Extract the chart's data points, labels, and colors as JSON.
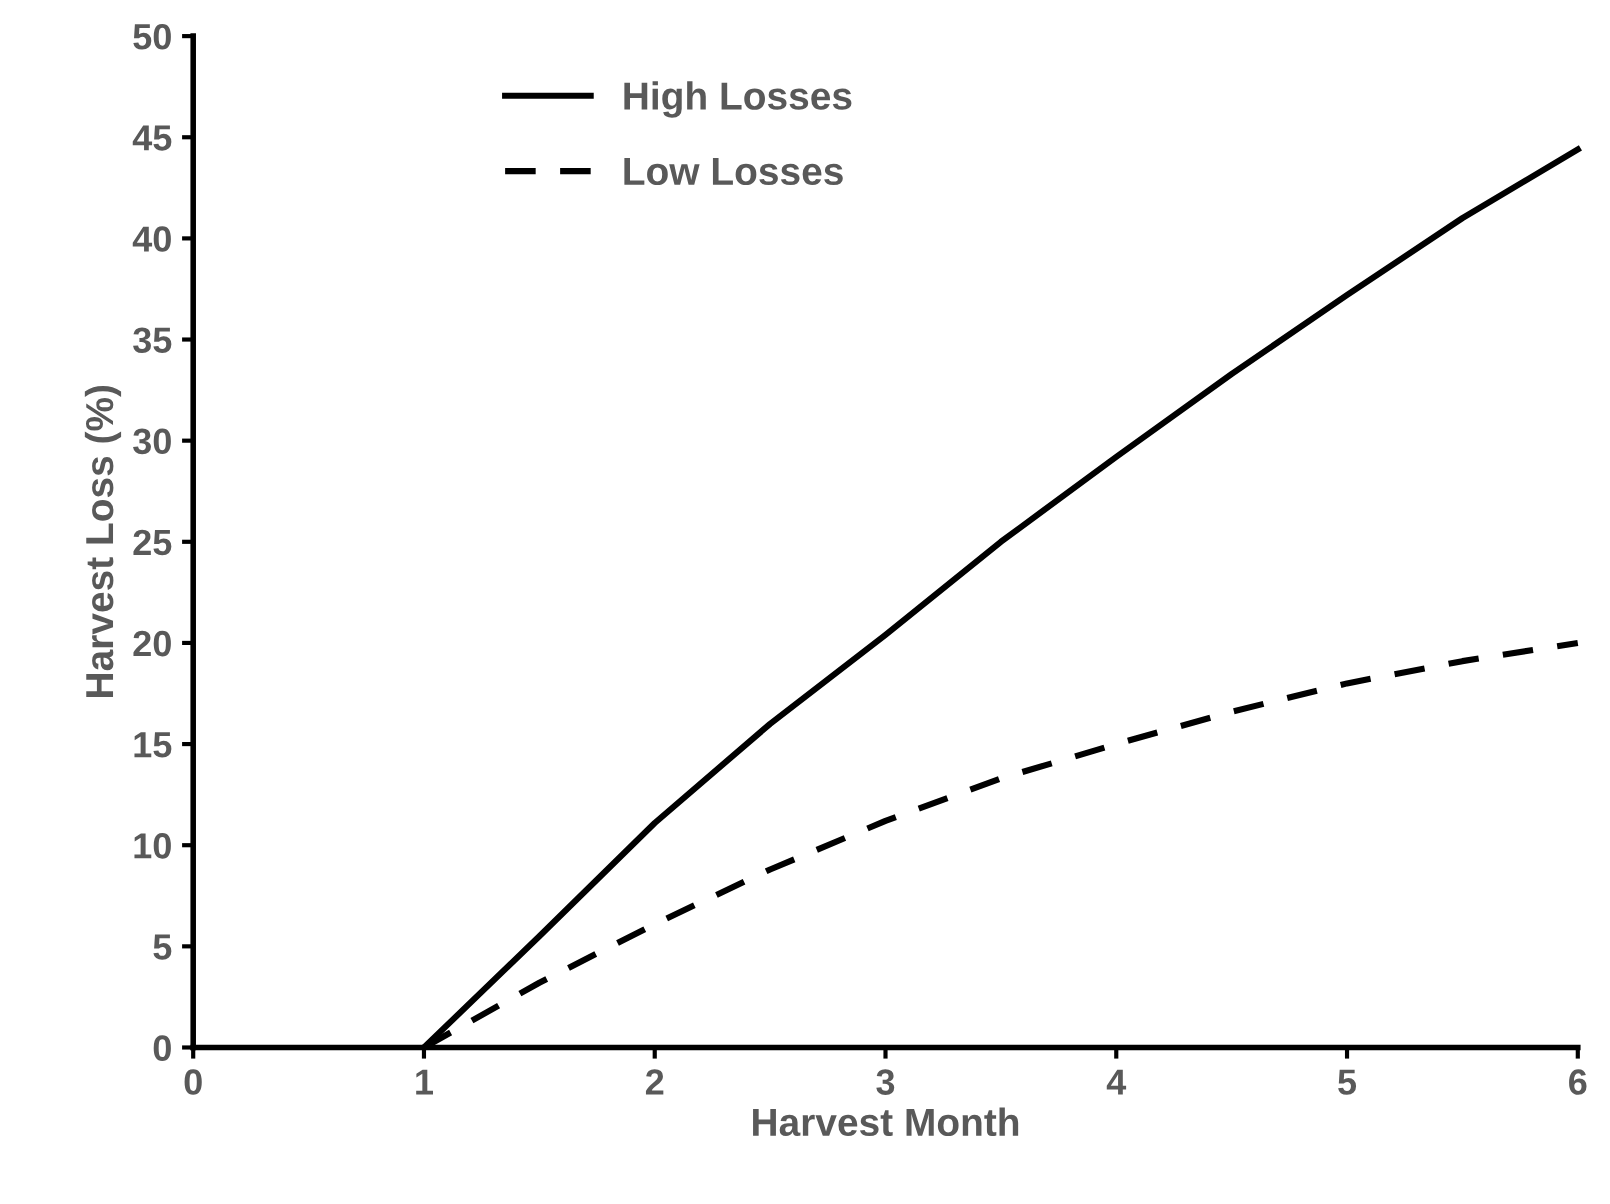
{
  "chart_data": {
    "type": "line",
    "xlabel": "Harvest Month",
    "ylabel": "Harvest Loss (%)",
    "xlim": [
      0,
      6
    ],
    "xticks": [
      0,
      1,
      2,
      3,
      4,
      5,
      6
    ],
    "ylim": [
      0,
      50
    ],
    "yticks": [
      0,
      5,
      10,
      15,
      20,
      25,
      30,
      35,
      40,
      45,
      50
    ],
    "grid": false,
    "legend": "top left",
    "marker": "none",
    "series": [
      {
        "name": "High Losses",
        "color": "#000000",
        "line_style": "solid",
        "x": [
          1,
          1.5,
          2,
          2.5,
          3,
          3.5,
          4,
          4.5,
          5,
          5.5,
          6
        ],
        "values": [
          0,
          5.5,
          11.1,
          16,
          20.4,
          25,
          29.2,
          33.3,
          37.2,
          41,
          44.4
        ]
      },
      {
        "name": "Low Losses",
        "color": "#000000",
        "line_style": "dashed",
        "x": [
          1,
          1.5,
          2,
          2.5,
          3,
          3.5,
          4,
          4.5,
          5,
          5.5,
          6
        ],
        "values": [
          0,
          3.2,
          6.1,
          8.8,
          11.2,
          13.3,
          15,
          16.6,
          18,
          19.1,
          20
        ]
      }
    ]
  }
}
